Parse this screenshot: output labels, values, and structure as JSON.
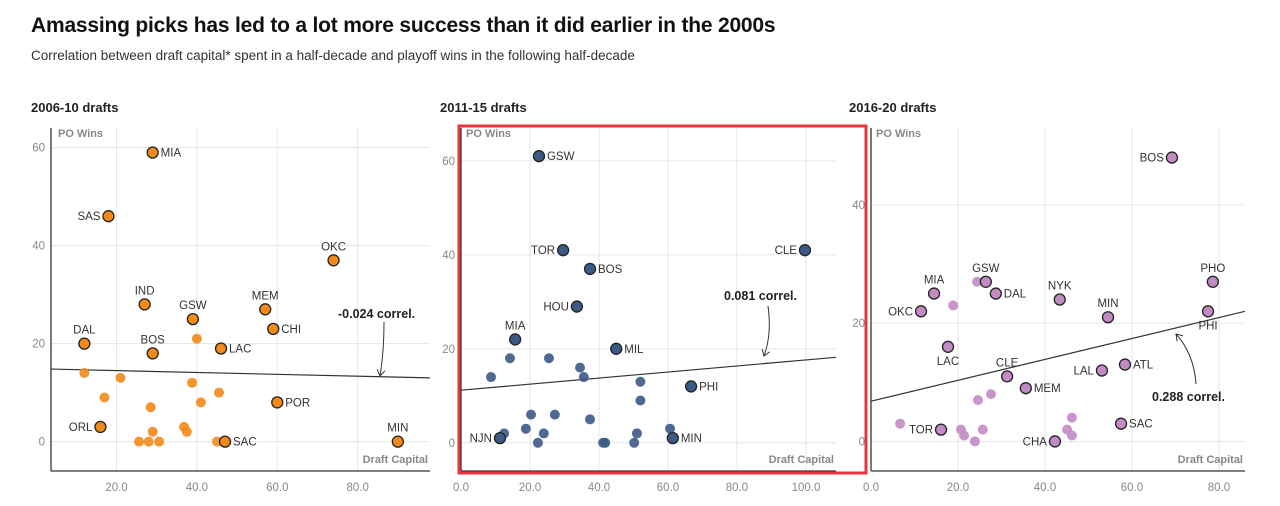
{
  "header": {
    "title": "Amassing picks has led to a lot more success than it did earlier in the 2000s",
    "subtitle": "Correlation between draft capital* spent in a half-decade and playoff wins in the following half-decade"
  },
  "colors": {
    "2006-10": "#f28a1a",
    "2011-15": "#3c5a86",
    "2016-20": "#c28bc4",
    "highlight_frame": "#e8343c"
  },
  "chart_data": [
    {
      "type": "scatter",
      "title": "2006-10 drafts",
      "xlabel": "Draft Capital",
      "ylabel": "PO Wins",
      "xlim": [
        3.7,
        98
      ],
      "ylim": [
        -6,
        64
      ],
      "xticks": [
        "20.0",
        "40.0",
        "60.0",
        "80.0"
      ],
      "yticks": [
        "0",
        "20",
        "40",
        "60"
      ],
      "grid": true,
      "correlation": "-0.024",
      "correlation_suffix": "correl.",
      "trendline": [
        [
          3.7,
          14.8
        ],
        [
          98,
          13
        ]
      ],
      "points": [
        {
          "label": "MIA",
          "x": 29,
          "y": 59
        },
        {
          "label": "SAS",
          "x": 18,
          "y": 46
        },
        {
          "label": "OKC",
          "x": 74,
          "y": 37
        },
        {
          "label": "IND",
          "x": 27,
          "y": 28
        },
        {
          "label": "MEM",
          "x": 57,
          "y": 27
        },
        {
          "label": "GSW",
          "x": 39,
          "y": 25
        },
        {
          "label": "CHI",
          "x": 59,
          "y": 23
        },
        {
          "label": "DAL",
          "x": 12,
          "y": 20
        },
        {
          "label": "BOS",
          "x": 29,
          "y": 18
        },
        {
          "label": "LAC",
          "x": 46,
          "y": 19
        },
        {
          "label": "ORL",
          "x": 16,
          "y": 3
        },
        {
          "label": "SAC",
          "x": 47,
          "y": 0
        },
        {
          "label": "POR",
          "x": 60,
          "y": 8
        },
        {
          "label": "MIN",
          "x": 90,
          "y": 0
        },
        {
          "label": "",
          "x": 40,
          "y": 21
        },
        {
          "label": "",
          "x": 12,
          "y": 14
        },
        {
          "label": "",
          "x": 21,
          "y": 13
        },
        {
          "label": "",
          "x": 17,
          "y": 9
        },
        {
          "label": "",
          "x": 28.5,
          "y": 7
        },
        {
          "label": "",
          "x": 38.8,
          "y": 12
        },
        {
          "label": "",
          "x": 41,
          "y": 8
        },
        {
          "label": "",
          "x": 45.5,
          "y": 10
        },
        {
          "label": "",
          "x": 36.8,
          "y": 3
        },
        {
          "label": "",
          "x": 37.5,
          "y": 2
        },
        {
          "label": "",
          "x": 29,
          "y": 2
        },
        {
          "label": "",
          "x": 25.6,
          "y": 0
        },
        {
          "label": "",
          "x": 28,
          "y": 0
        },
        {
          "label": "",
          "x": 30.6,
          "y": 0
        },
        {
          "label": "",
          "x": 45,
          "y": 0
        }
      ]
    },
    {
      "type": "scatter",
      "title": "2011-15 drafts",
      "xlabel": "Draft Capital",
      "ylabel": "PO Wins",
      "xlim": [
        0,
        108.7
      ],
      "ylim": [
        -6,
        67
      ],
      "xticks": [
        "0.0",
        "20.0",
        "40.0",
        "60.0",
        "80.0",
        "100.0"
      ],
      "yticks": [
        "0",
        "20",
        "40",
        "60"
      ],
      "grid": true,
      "highlighted": true,
      "correlation": "0.081",
      "correlation_suffix": "correl.",
      "trendline": [
        [
          0,
          11.2
        ],
        [
          108.7,
          18.2
        ]
      ],
      "points": [
        {
          "label": "GSW",
          "x": 22.6,
          "y": 61
        },
        {
          "label": "TOR",
          "x": 29.6,
          "y": 41
        },
        {
          "label": "BOS",
          "x": 37.4,
          "y": 37
        },
        {
          "label": "HOU",
          "x": 33.6,
          "y": 29
        },
        {
          "label": "CLE",
          "x": 99.7,
          "y": 41
        },
        {
          "label": "MIA",
          "x": 15.7,
          "y": 22
        },
        {
          "label": "MIL",
          "x": 45,
          "y": 20
        },
        {
          "label": "PHI",
          "x": 66.7,
          "y": 12
        },
        {
          "label": "MIN",
          "x": 61.4,
          "y": 1
        },
        {
          "label": "NJN",
          "x": 11.3,
          "y": 1
        },
        {
          "label": "",
          "x": 14.2,
          "y": 18
        },
        {
          "label": "",
          "x": 25.5,
          "y": 18
        },
        {
          "label": "",
          "x": 8.7,
          "y": 14
        },
        {
          "label": "",
          "x": 34.5,
          "y": 16
        },
        {
          "label": "",
          "x": 35.6,
          "y": 14
        },
        {
          "label": "",
          "x": 52,
          "y": 13
        },
        {
          "label": "",
          "x": 52,
          "y": 9
        },
        {
          "label": "",
          "x": 20.3,
          "y": 6
        },
        {
          "label": "",
          "x": 27.2,
          "y": 6
        },
        {
          "label": "",
          "x": 37.4,
          "y": 5
        },
        {
          "label": "",
          "x": 18.8,
          "y": 3
        },
        {
          "label": "",
          "x": 24,
          "y": 2
        },
        {
          "label": "",
          "x": 12.5,
          "y": 2
        },
        {
          "label": "",
          "x": 22.3,
          "y": 0
        },
        {
          "label": "",
          "x": 41.2,
          "y": 0
        },
        {
          "label": "",
          "x": 41.8,
          "y": 0
        },
        {
          "label": "",
          "x": 50.2,
          "y": 0
        },
        {
          "label": "",
          "x": 51,
          "y": 2
        },
        {
          "label": "",
          "x": 60.6,
          "y": 3
        }
      ]
    },
    {
      "type": "scatter",
      "title": "2016-20 drafts",
      "xlabel": "Draft Capital",
      "ylabel": "PO Wins",
      "xlim": [
        0,
        86
      ],
      "ylim": [
        -5,
        53
      ],
      "xticks": [
        "0.0",
        "20.0",
        "40.0",
        "60.0",
        "80.0"
      ],
      "yticks": [
        "0",
        "20",
        "40"
      ],
      "grid": true,
      "correlation": "0.288",
      "correlation_suffix": "correl.",
      "trendline": [
        [
          0,
          6.8
        ],
        [
          86,
          22
        ]
      ],
      "points": [
        {
          "label": "BOS",
          "x": 69.2,
          "y": 48
        },
        {
          "label": "PHO",
          "x": 78.6,
          "y": 27
        },
        {
          "label": "PHI",
          "x": 77.5,
          "y": 22
        },
        {
          "label": "NYK",
          "x": 43.4,
          "y": 24
        },
        {
          "label": "MIN",
          "x": 54.5,
          "y": 21
        },
        {
          "label": "MIA",
          "x": 14.5,
          "y": 25
        },
        {
          "label": "GSW",
          "x": 26.4,
          "y": 27
        },
        {
          "label": "DAL",
          "x": 28.7,
          "y": 25
        },
        {
          "label": "OKC",
          "x": 11.5,
          "y": 22
        },
        {
          "label": "LAC",
          "x": 17.7,
          "y": 16
        },
        {
          "label": "CLE",
          "x": 31.3,
          "y": 11
        },
        {
          "label": "MEM",
          "x": 35.6,
          "y": 9
        },
        {
          "label": "LAL",
          "x": 53.1,
          "y": 12
        },
        {
          "label": "ATL",
          "x": 58.4,
          "y": 13
        },
        {
          "label": "SAC",
          "x": 57.5,
          "y": 3
        },
        {
          "label": "CHA",
          "x": 42.3,
          "y": 0
        },
        {
          "label": "TOR",
          "x": 16.1,
          "y": 2
        },
        {
          "label": "",
          "x": 24.4,
          "y": 27
        },
        {
          "label": "",
          "x": 18.9,
          "y": 23
        },
        {
          "label": "",
          "x": 6.7,
          "y": 3
        },
        {
          "label": "",
          "x": 20.7,
          "y": 2
        },
        {
          "label": "",
          "x": 21.4,
          "y": 1
        },
        {
          "label": "",
          "x": 23.9,
          "y": 0
        },
        {
          "label": "",
          "x": 25.7,
          "y": 2
        },
        {
          "label": "",
          "x": 24.6,
          "y": 7
        },
        {
          "label": "",
          "x": 27.6,
          "y": 8
        },
        {
          "label": "",
          "x": 45.1,
          "y": 2
        },
        {
          "label": "",
          "x": 46.2,
          "y": 4
        },
        {
          "label": "",
          "x": 46.2,
          "y": 1
        }
      ]
    }
  ]
}
